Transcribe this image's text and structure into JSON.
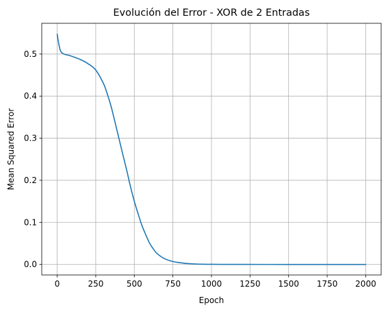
{
  "chart_data": {
    "type": "line",
    "title": "Evolución del Error - XOR de 2 Entradas",
    "xlabel": "Epoch",
    "ylabel": "Mean Squared Error",
    "xlim": [
      -100,
      2100
    ],
    "ylim": [
      -0.025,
      0.573
    ],
    "grid": true,
    "legend": "none",
    "xticks": [
      0,
      250,
      500,
      750,
      1000,
      1250,
      1500,
      1750,
      2000
    ],
    "xtick_labels": [
      "0",
      "250",
      "500",
      "750",
      "1000",
      "1250",
      "1500",
      "1750",
      "2000"
    ],
    "yticks": [
      0.0,
      0.1,
      0.2,
      0.3,
      0.4,
      0.5
    ],
    "ytick_labels": [
      "0.0",
      "0.1",
      "0.2",
      "0.3",
      "0.4",
      "0.5"
    ],
    "series": [
      {
        "color": "#1f77b4",
        "x": [
          0,
          10,
          20,
          30,
          40,
          50,
          75,
          100,
          150,
          200,
          250,
          300,
          325,
          350,
          375,
          400,
          425,
          450,
          475,
          500,
          525,
          550,
          575,
          600,
          625,
          650,
          700,
          750,
          800,
          850,
          900,
          950,
          1000,
          1100,
          1200,
          1500,
          1750,
          2000
        ],
        "y": [
          0.547,
          0.525,
          0.509,
          0.503,
          0.501,
          0.499,
          0.497,
          0.494,
          0.487,
          0.477,
          0.462,
          0.43,
          0.405,
          0.375,
          0.338,
          0.3,
          0.262,
          0.225,
          0.185,
          0.15,
          0.12,
          0.092,
          0.07,
          0.05,
          0.036,
          0.025,
          0.013,
          0.007,
          0.004,
          0.002,
          0.001,
          0.0005,
          0.0003,
          0.0001,
          0.0001,
          0.0,
          0.0,
          0.0
        ]
      }
    ]
  }
}
